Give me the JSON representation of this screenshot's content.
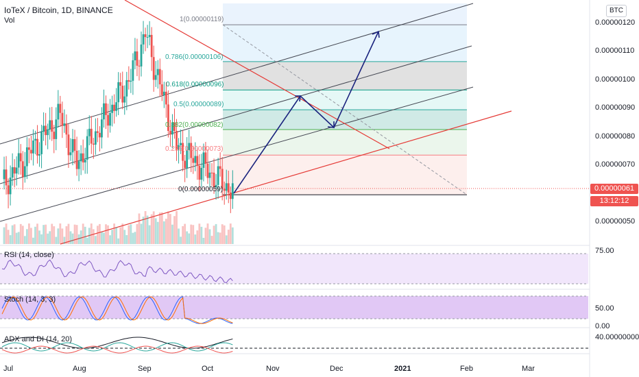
{
  "header": {
    "symbol_title": "IoTeX / Bitcoin, 1D, BINANCE",
    "volume_label": "Vol",
    "currency_badge": "BTC"
  },
  "price_axis": {
    "ticks": [
      "0.00000120",
      "0.00000110",
      "0.00000100",
      "0.00000090",
      "0.00000080",
      "0.00000070",
      "0.00000050"
    ],
    "current_price": "0.00000061",
    "countdown": "13:12:12",
    "current_price_color": "#ef5350"
  },
  "fib_levels": [
    {
      "label": "1(0.00000119)",
      "color": "#787b86"
    },
    {
      "label": "0.786(0.00000106)",
      "color": "#26a69a"
    },
    {
      "label": "0.618(0.00000096)",
      "color": "#089981"
    },
    {
      "label": "0.5(0.00000089)",
      "color": "#26a69a"
    },
    {
      "label": "0.382(0.00000082)",
      "color": "#4caf50"
    },
    {
      "label": "0.236(0.00000073)",
      "color": "#f77c80"
    },
    {
      "label": "0(0.00000059)",
      "color": "#131722"
    }
  ],
  "indicators": {
    "rsi": {
      "label": "RSI (14, close)",
      "axis_value": "75.00"
    },
    "stoch": {
      "label": "Stoch (14, 3, 3)",
      "axis_values": [
        "50.00",
        "0.00"
      ]
    },
    "adx": {
      "label": "ADX and DI (14, 20)",
      "axis_value": "40.00000000"
    }
  },
  "time_axis": [
    "Jul",
    "Aug",
    "Sep",
    "Oct",
    "Nov",
    "Dec",
    "2021",
    "Feb",
    "Mar"
  ],
  "colors": {
    "up": "#26a69a",
    "down": "#ef5350",
    "channel_red": "#e53935",
    "arrow_blue": "#1a237e",
    "rsi_band": "#f1e6fb",
    "stoch_band": "#e1c8f5"
  }
}
